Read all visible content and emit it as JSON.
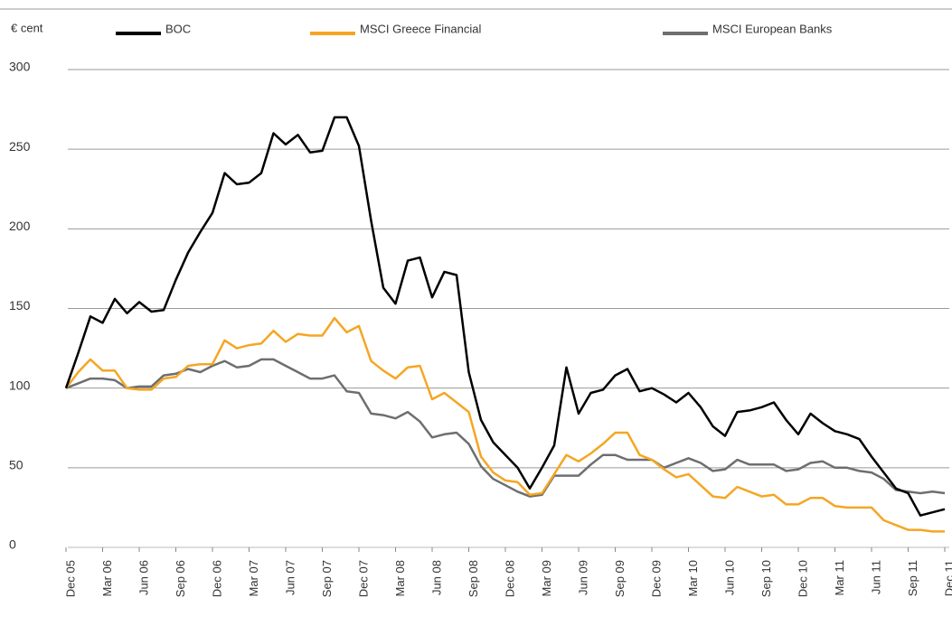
{
  "chart_data": {
    "type": "line",
    "y_label": "€ cent",
    "categories": [
      "Dec 05",
      null,
      null,
      "Mar 06",
      null,
      null,
      "Jun 06",
      null,
      null,
      "Sep 06",
      null,
      null,
      "Dec 06",
      null,
      null,
      "Mar 07",
      null,
      null,
      "Jun 07",
      null,
      null,
      "Sep 07",
      null,
      null,
      "Dec 07",
      null,
      null,
      "Mar 08",
      null,
      null,
      "Jun 08",
      null,
      null,
      "Sep 08",
      null,
      null,
      "Dec 08",
      null,
      null,
      "Mar 09",
      null,
      null,
      "Jun 09",
      null,
      null,
      "Sep 09",
      null,
      null,
      "Dec 09",
      null,
      null,
      "Mar 10",
      null,
      null,
      "Jun 10",
      null,
      null,
      "Sep 10",
      null,
      null,
      "Dec 10",
      null,
      null,
      "Mar 11",
      null,
      null,
      "Jun 11",
      null,
      null,
      "Sep 11",
      null,
      null,
      "Dec 11"
    ],
    "series": [
      {
        "name": "BOC",
        "color": "#000000",
        "values": [
          100,
          122,
          145,
          141,
          156,
          147,
          154,
          148,
          149,
          168,
          185,
          198,
          210,
          235,
          228,
          229,
          235,
          260,
          253,
          259,
          248,
          249,
          270,
          270,
          252,
          205,
          163,
          153,
          180,
          182,
          157,
          173,
          171,
          110,
          80,
          66,
          58,
          50,
          37,
          50,
          64,
          113,
          84,
          97,
          99,
          108,
          112,
          98,
          100,
          96,
          91,
          97,
          88,
          76,
          70,
          85,
          86,
          88,
          91,
          80,
          71,
          84,
          78,
          73,
          71,
          68,
          57,
          47,
          37,
          34,
          20,
          22,
          24
        ]
      },
      {
        "name": "MSCI Greece Financial",
        "color": "#f5a623",
        "values": [
          100,
          110,
          118,
          111,
          111,
          100,
          99,
          99,
          106,
          107,
          114,
          115,
          115,
          130,
          125,
          127,
          128,
          136,
          129,
          134,
          133,
          133,
          144,
          135,
          139,
          117,
          111,
          106,
          113,
          114,
          93,
          97,
          91,
          85,
          57,
          47,
          42,
          41,
          33,
          34,
          46,
          58,
          54,
          59,
          65,
          72,
          72,
          58,
          55,
          49,
          44,
          46,
          39,
          32,
          31,
          38,
          35,
          32,
          33,
          27,
          27,
          31,
          31,
          26,
          25,
          25,
          25,
          17,
          14,
          11,
          11,
          10,
          10
        ]
      },
      {
        "name": "MSCI European Banks",
        "color": "#6d6e70",
        "values": [
          100,
          103,
          106,
          106,
          105,
          100,
          101,
          101,
          108,
          109,
          112,
          110,
          114,
          117,
          113,
          114,
          118,
          118,
          114,
          110,
          106,
          106,
          108,
          98,
          97,
          84,
          83,
          81,
          85,
          79,
          69,
          71,
          72,
          65,
          51,
          43,
          39,
          35,
          32,
          33,
          45,
          45,
          45,
          52,
          58,
          58,
          55,
          55,
          55,
          50,
          53,
          56,
          53,
          48,
          49,
          55,
          52,
          52,
          52,
          48,
          49,
          53,
          54,
          50,
          50,
          48,
          47,
          43,
          36,
          35,
          34,
          35,
          34
        ]
      }
    ],
    "ylim": [
      0,
      300
    ],
    "yticks": [
      0,
      50,
      100,
      150,
      200,
      250,
      300
    ],
    "grid": true,
    "legend": "top"
  }
}
